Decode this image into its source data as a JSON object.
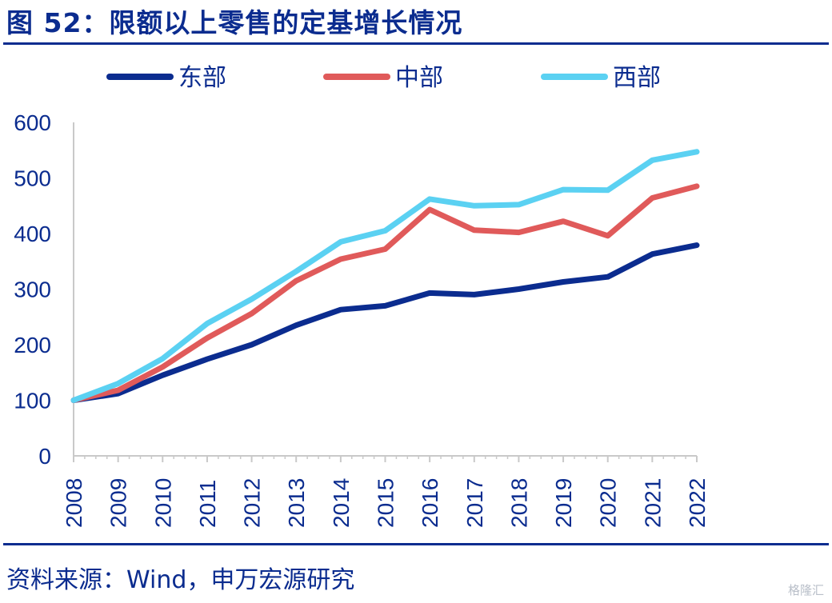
{
  "header": {
    "title": "图 52：限额以上零售的定基增长情况"
  },
  "footer": {
    "source": "资料来源：Wind，申万宏源研究",
    "watermark": "格隆汇"
  },
  "chart_data": {
    "type": "line",
    "title": "图 52：限额以上零售的定基增长情况",
    "xlabel": "",
    "ylabel": "",
    "ylim": [
      0,
      600
    ],
    "yticks": [
      0,
      100,
      200,
      300,
      400,
      500,
      600
    ],
    "legend_position": "top",
    "x": [
      "2008",
      "2009",
      "2010",
      "2011",
      "2012",
      "2013",
      "2014",
      "2015",
      "2016",
      "2017",
      "2018",
      "2019",
      "2020",
      "2021",
      "2022"
    ],
    "series": [
      {
        "name": "东部",
        "color": "#0b2c8f",
        "values": [
          100,
          112,
          145,
          174,
          200,
          235,
          263,
          270,
          293,
          290,
          300,
          313,
          322,
          363,
          379
        ]
      },
      {
        "name": "中部",
        "color": "#e05a5a",
        "values": [
          100,
          118,
          160,
          212,
          256,
          315,
          354,
          372,
          443,
          406,
          402,
          422,
          396,
          464,
          485
        ]
      },
      {
        "name": "西部",
        "color": "#5bd1f2",
        "values": [
          100,
          130,
          175,
          238,
          282,
          332,
          385,
          405,
          462,
          450,
          452,
          479,
          478,
          532,
          547
        ]
      }
    ]
  }
}
